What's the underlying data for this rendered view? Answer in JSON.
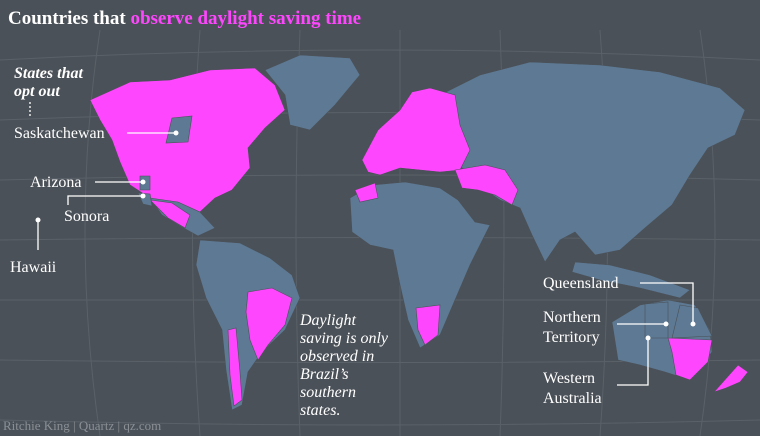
{
  "header": {
    "title_prefix": "Countries that",
    "title_highlight": "observe daylight saving time"
  },
  "opt_out_heading": [
    "States that",
    "opt out"
  ],
  "labels": {
    "saskatchewan": [
      "Saskatchewan"
    ],
    "arizona": [
      "Arizona"
    ],
    "sonora": [
      "Sonora"
    ],
    "hawaii": [
      "Hawaii"
    ],
    "queensland": [
      "Queensland"
    ],
    "northern_territory": [
      "Northern",
      "Territory"
    ],
    "western_australia": [
      "Western",
      "Australia"
    ]
  },
  "annotation": [
    "Daylight",
    "saving is only",
    "observed in",
    "Brazil’s",
    "southern",
    "states."
  ],
  "credit": "Ritchie King | Quartz | qz.com"
}
